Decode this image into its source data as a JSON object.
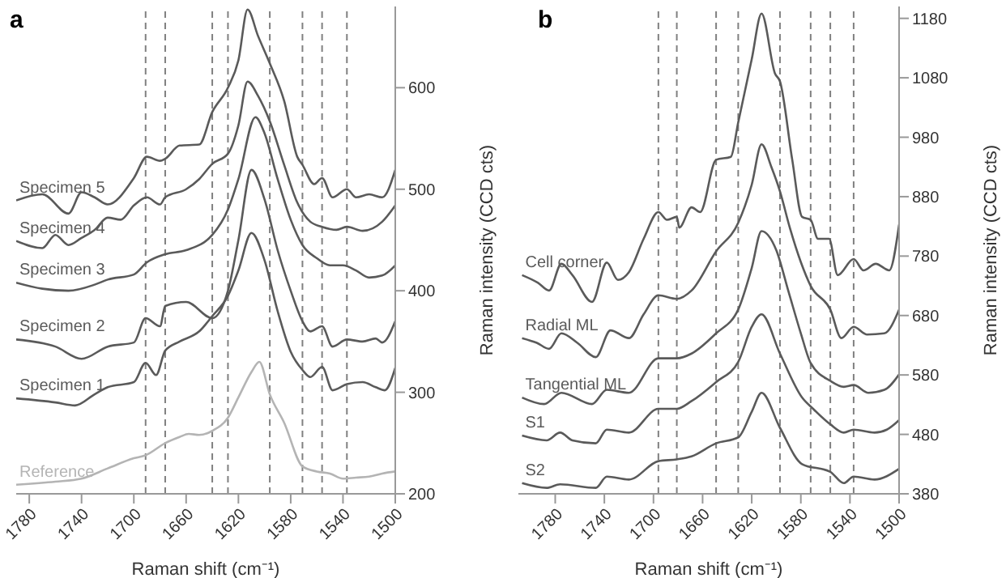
{
  "chart_data": [
    {
      "type": "line",
      "title": "a",
      "xlabel": "Raman shift (cm⁻¹)",
      "ylabel": "Raman intensity (CCD cts)",
      "xlim": [
        1790,
        1500
      ],
      "xticks": [
        1780,
        1740,
        1700,
        1660,
        1620,
        1580,
        1540,
        1500
      ],
      "ylim": [
        200,
        680
      ],
      "yticks": [
        200,
        300,
        400,
        500,
        600
      ],
      "grid": false,
      "legend": false,
      "marker": "none",
      "line_style": "solid",
      "ref_lines": [
        {
          "axis": "x",
          "value": 1691,
          "color": "#808080",
          "line_style": "dashed"
        },
        {
          "axis": "x",
          "value": 1676,
          "color": "#808080",
          "line_style": "dashed"
        },
        {
          "axis": "x",
          "value": 1640,
          "color": "#808080",
          "line_style": "dashed"
        },
        {
          "axis": "x",
          "value": 1628,
          "color": "#808080",
          "line_style": "dashed"
        },
        {
          "axis": "x",
          "value": 1596,
          "color": "#808080",
          "line_style": "dashed"
        },
        {
          "axis": "x",
          "value": 1571,
          "color": "#808080",
          "line_style": "dashed"
        },
        {
          "axis": "x",
          "value": 1556,
          "color": "#808080",
          "line_style": "dashed"
        },
        {
          "axis": "x",
          "value": 1537,
          "color": "#808080",
          "line_style": "dashed"
        }
      ],
      "series": [
        {
          "name": "Specimen 5",
          "color": "#5a5a5a",
          "x": [
            1790,
            1770,
            1750,
            1740,
            1730,
            1720,
            1700,
            1690,
            1680,
            1676,
            1665,
            1650,
            1640,
            1628,
            1620,
            1613,
            1605,
            1596,
            1585,
            1575,
            1571,
            1562,
            1556,
            1548,
            1537,
            1530,
            1520,
            1510,
            1500
          ],
          "values": [
            489,
            495,
            476,
            497,
            492,
            485,
            511,
            532,
            528,
            530,
            543,
            544,
            576,
            600,
            627,
            677,
            651,
            624,
            587,
            532,
            524,
            505,
            511,
            492,
            500,
            492,
            495,
            492,
            519
          ]
        },
        {
          "name": "Specimen 4",
          "color": "#5a5a5a",
          "x": [
            1790,
            1770,
            1760,
            1750,
            1740,
            1730,
            1720,
            1710,
            1700,
            1690,
            1680,
            1676,
            1660,
            1650,
            1640,
            1628,
            1620,
            1613,
            1605,
            1596,
            1585,
            1575,
            1565,
            1556,
            1545,
            1537,
            1525,
            1510,
            1500
          ],
          "values": [
            449,
            442,
            455,
            445,
            452,
            460,
            472,
            470,
            484,
            492,
            485,
            492,
            500,
            510,
            525,
            535,
            563,
            606,
            592,
            567,
            524,
            487,
            468,
            463,
            460,
            463,
            459,
            468,
            484
          ]
        },
        {
          "name": "Specimen 3",
          "color": "#5a5a5a",
          "x": [
            1790,
            1770,
            1750,
            1730,
            1720,
            1700,
            1690,
            1676,
            1660,
            1640,
            1628,
            1620,
            1607,
            1600,
            1590,
            1580,
            1571,
            1560,
            1550,
            1540,
            1530,
            1520,
            1510,
            1500
          ],
          "values": [
            408,
            402,
            400,
            406,
            411,
            416,
            428,
            436,
            440,
            455,
            480,
            510,
            571,
            555,
            510,
            470,
            445,
            432,
            425,
            425,
            420,
            413,
            415,
            425
          ]
        },
        {
          "name": "Specimen 2",
          "color": "#5a5a5a",
          "x": [
            1790,
            1760,
            1740,
            1720,
            1700,
            1691,
            1680,
            1676,
            1660,
            1640,
            1628,
            1620,
            1610,
            1600,
            1590,
            1580,
            1571,
            1565,
            1556,
            1548,
            1537,
            1525,
            1515,
            1510,
            1500
          ],
          "values": [
            352,
            345,
            333,
            345,
            349,
            373,
            365,
            385,
            389,
            373,
            400,
            450,
            519,
            490,
            440,
            400,
            370,
            360,
            365,
            345,
            352,
            350,
            353,
            349,
            370
          ]
        },
        {
          "name": "Specimen 1",
          "color": "#5a5a5a",
          "x": [
            1790,
            1760,
            1745,
            1730,
            1720,
            1700,
            1691,
            1683,
            1676,
            1665,
            1650,
            1640,
            1628,
            1620,
            1610,
            1600,
            1590,
            1580,
            1571,
            1565,
            1556,
            1548,
            1537,
            1525,
            1515,
            1508,
            1500
          ],
          "values": [
            294,
            290,
            287,
            298,
            305,
            310,
            329,
            317,
            341,
            350,
            360,
            375,
            395,
            420,
            457,
            430,
            380,
            340,
            322,
            315,
            325,
            302,
            308,
            310,
            305,
            302,
            324
          ]
        },
        {
          "name": "Reference",
          "color": "#b4b4b4",
          "x": [
            1790,
            1760,
            1740,
            1720,
            1700,
            1691,
            1676,
            1665,
            1658,
            1650,
            1640,
            1628,
            1620,
            1610,
            1604,
            1596,
            1585,
            1571,
            1560,
            1550,
            1540,
            1530,
            1520,
            1510,
            1500
          ],
          "values": [
            209,
            212,
            215,
            225,
            235,
            238,
            250,
            256,
            259,
            258,
            262,
            275,
            295,
            320,
            330,
            298,
            270,
            227,
            222,
            220,
            215,
            216,
            217,
            220,
            222
          ]
        }
      ]
    },
    {
      "type": "line",
      "title": "b",
      "xlabel": "Raman shift (cm⁻¹)",
      "ylabel": "Raman intensity (CCD cts)",
      "xlim": [
        1810,
        1500
      ],
      "xticks": [
        1780,
        1740,
        1700,
        1660,
        1620,
        1580,
        1540,
        1500
      ],
      "ylim": [
        380,
        1200
      ],
      "yticks": [
        380,
        480,
        580,
        680,
        780,
        880,
        980,
        1080,
        1180
      ],
      "grid": false,
      "legend": false,
      "marker": "none",
      "line_style": "solid",
      "ref_lines": [
        {
          "axis": "x",
          "value": 1696,
          "color": "#808080",
          "line_style": "dashed"
        },
        {
          "axis": "x",
          "value": 1681,
          "color": "#808080",
          "line_style": "dashed"
        },
        {
          "axis": "x",
          "value": 1649,
          "color": "#808080",
          "line_style": "dashed"
        },
        {
          "axis": "x",
          "value": 1631,
          "color": "#808080",
          "line_style": "dashed"
        },
        {
          "axis": "x",
          "value": 1597,
          "color": "#808080",
          "line_style": "dashed"
        },
        {
          "axis": "x",
          "value": 1572,
          "color": "#808080",
          "line_style": "dashed"
        },
        {
          "axis": "x",
          "value": 1556,
          "color": "#808080",
          "line_style": "dashed"
        },
        {
          "axis": "x",
          "value": 1537,
          "color": "#808080",
          "line_style": "dashed"
        }
      ],
      "series": [
        {
          "name": "Cell corner",
          "color": "#5a5a5a",
          "x": [
            1807,
            1794,
            1785,
            1775,
            1766,
            1750,
            1738,
            1729,
            1720,
            1708,
            1696,
            1689,
            1681,
            1679,
            1669,
            1662,
            1649,
            1637,
            1631,
            1620,
            1612,
            1601,
            1597,
            1587,
            1579,
            1572,
            1566,
            1557,
            1550,
            1537,
            1529,
            1519,
            1508,
            1500
          ],
          "values": [
            748,
            735,
            722,
            767,
            748,
            703,
            769,
            740,
            753,
            809,
            854,
            841,
            846,
            828,
            862,
            854,
            942,
            947,
            1005,
            1111,
            1188,
            1087,
            1074,
            942,
            846,
            841,
            809,
            809,
            748,
            775,
            756,
            767,
            756,
            833
          ]
        },
        {
          "name": "Radial ML",
          "color": "#5a5a5a",
          "x": [
            1807,
            1795,
            1785,
            1775,
            1762,
            1747,
            1735,
            1720,
            1708,
            1696,
            1681,
            1669,
            1649,
            1631,
            1620,
            1612,
            1604,
            1597,
            1589,
            1580,
            1572,
            1556,
            1547,
            1537,
            1526,
            1512,
            1500
          ],
          "values": [
            642,
            634,
            624,
            650,
            634,
            610,
            655,
            642,
            682,
            714,
            708,
            722,
            788,
            836,
            900,
            968,
            930,
            889,
            828,
            770,
            730,
            690,
            642,
            661,
            648,
            650,
            690
          ]
        },
        {
          "name": "Tangential ML",
          "color": "#5a5a5a",
          "x": [
            1807,
            1789,
            1775,
            1750,
            1738,
            1720,
            1696,
            1681,
            1669,
            1649,
            1631,
            1620,
            1612,
            1600,
            1590,
            1580,
            1572,
            1556,
            1545,
            1537,
            1525,
            1512,
            1500
          ],
          "values": [
            542,
            531,
            550,
            531,
            555,
            550,
            608,
            608,
            616,
            650,
            690,
            760,
            822,
            790,
            720,
            650,
            600,
            570,
            560,
            563,
            550,
            555,
            581
          ]
        },
        {
          "name": "S1",
          "color": "#5a5a5a",
          "x": [
            1807,
            1787,
            1776,
            1766,
            1747,
            1738,
            1720,
            1696,
            1681,
            1669,
            1649,
            1631,
            1620,
            1612,
            1597,
            1579,
            1570,
            1556,
            1545,
            1537,
            1520,
            1510,
            1500
          ],
          "values": [
            478,
            470,
            483,
            470,
            465,
            488,
            483,
            523,
            523,
            536,
            568,
            602,
            661,
            682,
            616,
            542,
            523,
            497,
            483,
            488,
            483,
            488,
            504
          ]
        },
        {
          "name": "S2",
          "color": "#5a5a5a",
          "x": [
            1807,
            1787,
            1776,
            1747,
            1738,
            1720,
            1696,
            1681,
            1669,
            1649,
            1631,
            1620,
            1612,
            1597,
            1579,
            1556,
            1545,
            1537,
            1520,
            1500
          ],
          "values": [
            398,
            390,
            396,
            390,
            409,
            404,
            435,
            438,
            443,
            465,
            475,
            518,
            550,
            491,
            430,
            417,
            398,
            409,
            404,
            422
          ]
        }
      ]
    }
  ]
}
